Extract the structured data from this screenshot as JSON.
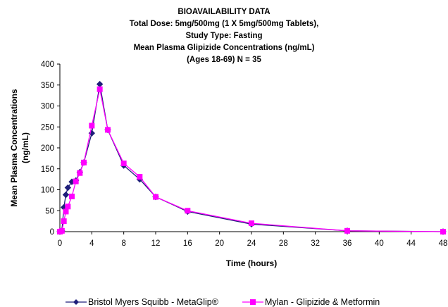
{
  "chart_data": {
    "type": "line",
    "title_lines": [
      "BIOAVAILABILITY DATA",
      "Total Dose: 5mg/500mg  (1 X 5mg/500mg Tablets),",
      "Study Type: Fasting",
      "Mean Plasma Glipizide Concentrations (ng/mL)",
      "(Ages 18-69) N = 35"
    ],
    "xlabel": "Time (hours)",
    "ylabel_lines": [
      "Mean Plasma Concentrations",
      "(ng/mL)"
    ],
    "xlim": [
      0,
      48
    ],
    "ylim": [
      0,
      400
    ],
    "xticks": [
      0,
      4,
      8,
      12,
      16,
      20,
      24,
      28,
      32,
      36,
      40,
      44,
      48
    ],
    "yticks": [
      0,
      50,
      100,
      150,
      200,
      250,
      300,
      350,
      400
    ],
    "grid": false,
    "legend_position": "bottom",
    "series": [
      {
        "name": "Bristol Myers Squibb - MetaGlip®",
        "color": "#1f1f7a",
        "marker": "diamond",
        "x": [
          0,
          0.25,
          0.5,
          0.75,
          1,
          1.5,
          2,
          2.5,
          3,
          4,
          5,
          6,
          8,
          10,
          12,
          16,
          24,
          36,
          48
        ],
        "y": [
          0,
          2,
          58,
          88,
          105,
          119,
          122,
          142,
          165,
          235,
          352,
          243,
          158,
          125,
          83,
          48,
          18,
          2,
          0
        ]
      },
      {
        "name": "Mylan - Glipizide & Metformin",
        "color": "#ff00ff",
        "marker": "square",
        "x": [
          0,
          0.25,
          0.5,
          0.75,
          1,
          1.5,
          2,
          2.5,
          3,
          4,
          5,
          6,
          8,
          10,
          12,
          16,
          24,
          36,
          48
        ],
        "y": [
          0,
          2,
          25,
          48,
          60,
          84,
          120,
          140,
          165,
          253,
          340,
          243,
          163,
          131,
          83,
          50,
          20,
          2,
          0
        ]
      }
    ]
  }
}
